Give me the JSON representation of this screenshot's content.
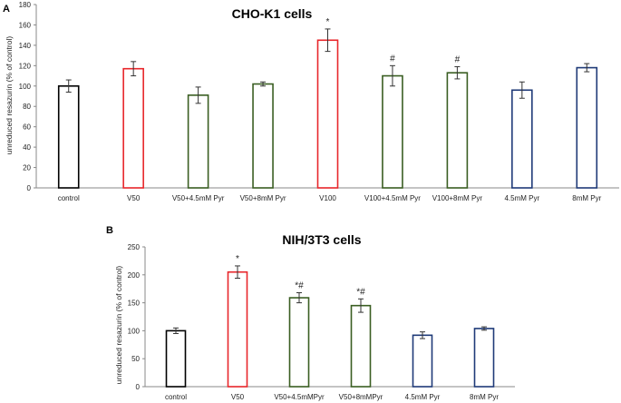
{
  "chart_data": [
    {
      "type": "bar",
      "panel_label": "A",
      "title": "CHO-K1 cells",
      "ylabel": "unreduced resazurin (% of control)",
      "xlabel": "",
      "ylim": [
        0,
        180
      ],
      "yticks": [
        0,
        20,
        40,
        60,
        80,
        100,
        120,
        140,
        160,
        180
      ],
      "categories": [
        "control",
        "V50",
        "V50+4.5mM Pyr",
        "V50+8mM Pyr",
        "V100",
        "V100+4.5mM Pyr",
        "V100+8mM Pyr",
        "4.5mM Pyr",
        "8mM Pyr"
      ],
      "values": [
        100,
        117,
        91,
        102,
        145,
        110,
        113,
        96,
        118
      ],
      "errors": [
        6,
        7,
        8,
        2,
        11,
        10,
        6,
        8,
        4
      ],
      "annotations": [
        "",
        "",
        "",
        "",
        "*",
        "#",
        "#",
        "",
        ""
      ],
      "bar_colors": [
        "#000000",
        "#e8262b",
        "#3a5e22",
        "#3a5e22",
        "#e8262b",
        "#3a5e22",
        "#3a5e22",
        "#1f3a78",
        "#1f3a78"
      ]
    },
    {
      "type": "bar",
      "panel_label": "B",
      "title": "NIH/3T3 cells",
      "ylabel": "unreduced resazurin (% of control)",
      "xlabel": "",
      "ylim": [
        0,
        250
      ],
      "yticks": [
        0,
        50,
        100,
        150,
        200,
        250
      ],
      "categories": [
        "control",
        "V50",
        "V50+4.5mMPyr",
        "V50+8mMPyr",
        "4.5mM Pyr",
        "8mM Pyr"
      ],
      "values": [
        100,
        205,
        159,
        145,
        92,
        104
      ],
      "errors": [
        5,
        11,
        9,
        12,
        6,
        3
      ],
      "annotations": [
        "",
        "*",
        "*#",
        "*#",
        "",
        ""
      ],
      "bar_colors": [
        "#000000",
        "#e8262b",
        "#3a5e22",
        "#3a5e22",
        "#1f3a78",
        "#1f3a78"
      ]
    }
  ]
}
